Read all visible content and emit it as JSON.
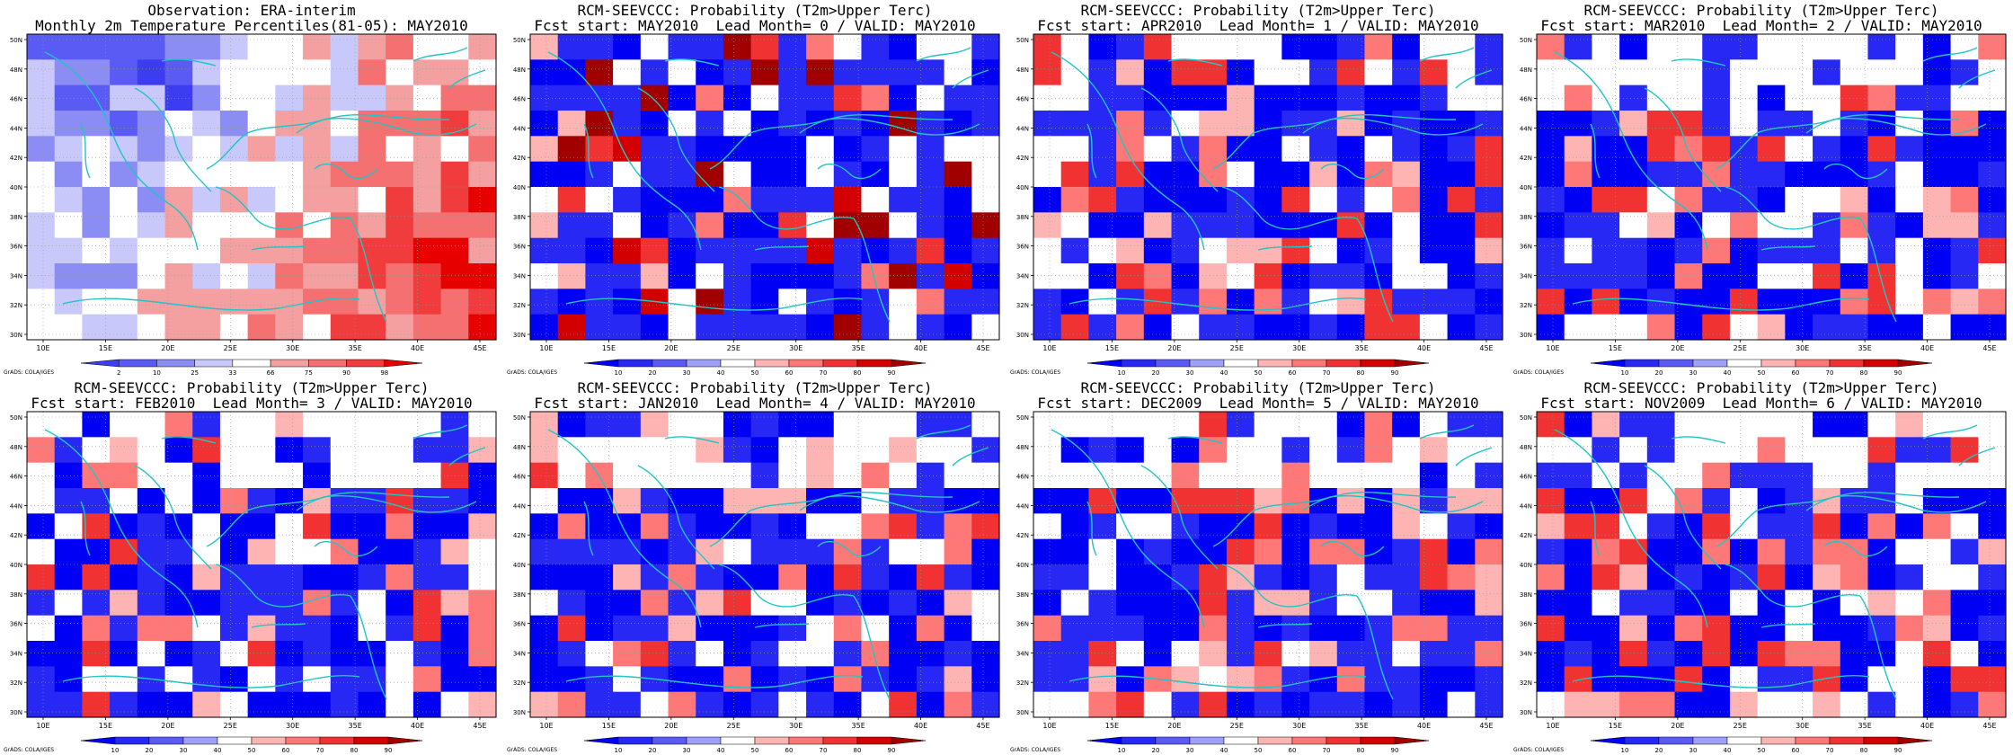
{
  "map_grid": {
    "lon_ticks": [
      "10E",
      "15E",
      "20E",
      "25E",
      "30E",
      "35E",
      "40E",
      "45E"
    ],
    "lat_ticks": [
      "50N",
      "48N",
      "46N",
      "44N",
      "42N",
      "40N",
      "38N",
      "36N",
      "34N",
      "32N",
      "30N"
    ],
    "credit": "GrADS: COLA/IGES"
  },
  "legends": {
    "observation": {
      "labels": [
        "2",
        "10",
        "25",
        "33",
        "66",
        "75",
        "90",
        "98"
      ],
      "colors": [
        "#3c3cf0",
        "#5a5af5",
        "#8c8cf5",
        "#c8c8fa",
        "#ffffff",
        "#f5a0a0",
        "#f57070",
        "#f03c3c",
        "#e60000"
      ]
    },
    "forecast": {
      "labels": [
        "10",
        "20",
        "30",
        "40",
        "50",
        "60",
        "70",
        "80",
        "90"
      ],
      "colors": [
        "#0000f5",
        "#2828f5",
        "#5a5af5",
        "#a0a0fa",
        "#ffffff",
        "#ffb4b4",
        "#ff7878",
        "#f03232",
        "#d20000",
        "#a00000"
      ]
    }
  },
  "panels": [
    {
      "title1": "Observation: ERA-interim",
      "title2": "Monthly 2m Temperature Percentiles(81-05): MAY2010",
      "legend": "observation"
    },
    {
      "title1": "RCM-SEEVCCC: Probability (T2m>Upper Terc)",
      "title2": "Fcst start: MAY2010  Lead Month= 0 / VALID: MAY2010",
      "legend": "forecast"
    },
    {
      "title1": "RCM-SEEVCCC: Probability (T2m>Upper Terc)",
      "title2": "Fcst start: APR2010  Lead Month= 1 / VALID: MAY2010",
      "legend": "forecast"
    },
    {
      "title1": "RCM-SEEVCCC: Probability (T2m>Upper Terc)",
      "title2": "Fcst start: MAR2010  Lead Month= 2 / VALID: MAY2010",
      "legend": "forecast"
    },
    {
      "title1": "RCM-SEEVCCC: Probability (T2m>Upper Terc)",
      "title2": "Fcst start: FEB2010  Lead Month= 3 / VALID: MAY2010",
      "legend": "forecast"
    },
    {
      "title1": "RCM-SEEVCCC: Probability (T2m>Upper Terc)",
      "title2": "Fcst start: JAN2010  Lead Month= 4 / VALID: MAY2010",
      "legend": "forecast"
    },
    {
      "title1": "RCM-SEEVCCC: Probability (T2m>Upper Terc)",
      "title2": "Fcst start: DEC2009  Lead Month= 5 / VALID: MAY2010",
      "legend": "forecast"
    },
    {
      "title1": "RCM-SEEVCCC: Probability (T2m>Upper Terc)",
      "title2": "Fcst start: NOV2009  Lead Month= 6 / VALID: MAY2010",
      "legend": "forecast"
    }
  ]
}
